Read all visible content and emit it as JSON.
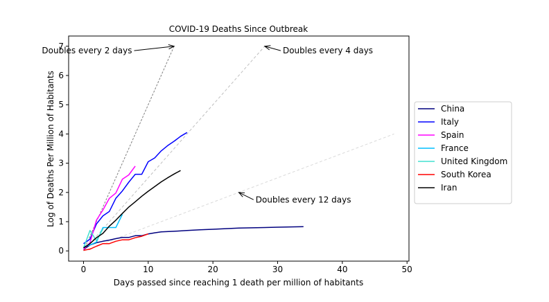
{
  "chart_data": {
    "type": "line",
    "title": "COVID-19 Deaths Since Outbreak",
    "xlabel": "Days passed since reaching 1 death per million of habitants",
    "ylabel": "Log of Deaths Per Million of Habitants",
    "xlim": [
      -2.3,
      50.3
    ],
    "ylim": [
      -0.35,
      7.35
    ],
    "xticks": [
      0,
      10,
      20,
      30,
      40,
      50
    ],
    "yticks": [
      0,
      1,
      2,
      3,
      4,
      5,
      6,
      7
    ],
    "grid": false,
    "legend_position": "right-outside",
    "series": [
      {
        "name": "China",
        "color": "#00007f",
        "x": [
          0,
          1,
          2,
          3,
          4,
          5,
          6,
          7,
          8,
          9,
          10,
          11,
          12,
          14,
          16,
          18,
          20,
          22,
          24,
          26,
          28,
          30,
          32,
          34
        ],
        "y": [
          0.05,
          0.2,
          0.28,
          0.33,
          0.37,
          0.42,
          0.46,
          0.46,
          0.52,
          0.52,
          0.58,
          0.62,
          0.65,
          0.67,
          0.7,
          0.72,
          0.74,
          0.76,
          0.78,
          0.79,
          0.8,
          0.81,
          0.82,
          0.83
        ]
      },
      {
        "name": "Italy",
        "color": "#0000ff",
        "x": [
          0,
          1,
          2,
          3,
          4,
          5,
          6,
          7,
          8,
          9,
          10,
          11,
          12,
          13,
          14,
          15,
          16
        ],
        "y": [
          0.25,
          0.4,
          0.92,
          1.2,
          1.35,
          1.8,
          2.05,
          2.35,
          2.62,
          2.62,
          3.05,
          3.18,
          3.42,
          3.6,
          3.75,
          3.92,
          4.05
        ]
      },
      {
        "name": "Spain",
        "color": "#ff00ff",
        "x": [
          0,
          1,
          2,
          3,
          4,
          5,
          6,
          7,
          8
        ],
        "y": [
          0.05,
          0.28,
          1.05,
          1.4,
          1.8,
          1.98,
          2.45,
          2.6,
          2.9
        ]
      },
      {
        "name": "France",
        "color": "#00bfff",
        "x": [
          0,
          1,
          2,
          3,
          4,
          5,
          6
        ],
        "y": [
          0.15,
          0.2,
          0.3,
          0.8,
          0.8,
          0.8,
          1.25
        ]
      },
      {
        "name": "United Kingdom",
        "color": "#40e0d0",
        "x": [
          0,
          1,
          2,
          3
        ],
        "y": [
          0.1,
          0.7,
          0.35,
          0.75
        ]
      },
      {
        "name": "South Korea",
        "color": "#ff0000",
        "x": [
          0,
          1,
          2,
          3,
          4,
          5,
          6,
          7,
          8,
          9,
          10
        ],
        "y": [
          0.02,
          0.06,
          0.16,
          0.25,
          0.25,
          0.33,
          0.38,
          0.38,
          0.45,
          0.5,
          0.58
        ]
      },
      {
        "name": "Iran",
        "color": "#000000",
        "x": [
          0,
          1,
          2,
          3,
          4,
          5,
          6,
          7,
          8,
          9,
          10,
          11,
          12,
          13,
          14,
          15
        ],
        "y": [
          0.1,
          0.25,
          0.45,
          0.6,
          0.85,
          1.05,
          1.28,
          1.5,
          1.68,
          1.87,
          2.04,
          2.2,
          2.36,
          2.5,
          2.63,
          2.75
        ]
      }
    ],
    "reference_lines": [
      {
        "label": "Doubles every 2 days",
        "x": [
          0,
          14
        ],
        "y": [
          0,
          7
        ],
        "color": "#808080",
        "dash": "3,2"
      },
      {
        "label": "Doubles every 4 days",
        "x": [
          0,
          28
        ],
        "y": [
          0,
          7
        ],
        "color": "#bfbfbf",
        "dash": "4,3"
      },
      {
        "label": "Doubles every 12 days",
        "x": [
          0,
          48
        ],
        "y": [
          0,
          4
        ],
        "color": "#d9d9d9",
        "dash": "4,3"
      }
    ],
    "annotations": [
      {
        "text": "Doubles every 2 days",
        "point": [
          14,
          7
        ],
        "text_at": [
          7.5,
          6.85
        ],
        "anchor": "end"
      },
      {
        "text": "Doubles every 4 days",
        "point": [
          28,
          7
        ],
        "text_at": [
          30.8,
          6.85
        ],
        "anchor": "start"
      },
      {
        "text": "Doubles every 12 days",
        "point": [
          24,
          2
        ],
        "text_at": [
          26.6,
          1.75
        ],
        "anchor": "start"
      }
    ]
  }
}
